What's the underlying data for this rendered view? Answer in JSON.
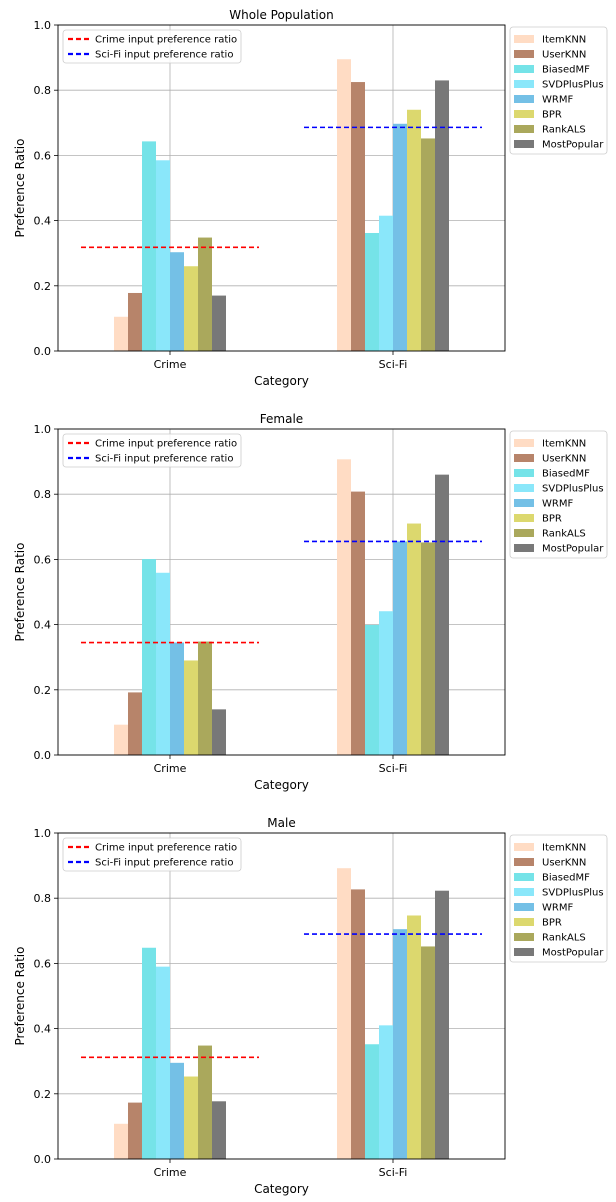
{
  "figure": {
    "description_free": true
  },
  "legend_lines": [
    {
      "label": "Crime input preference ratio",
      "color": "#ff0000"
    },
    {
      "label": "Sci-Fi input preference ratio",
      "color": "#0000ff"
    }
  ],
  "series": [
    {
      "name": "ItemKNN",
      "color": "#ffdcc4"
    },
    {
      "name": "UserKNN",
      "color": "#b7846a"
    },
    {
      "name": "BiasedMF",
      "color": "#75e3e8"
    },
    {
      "name": "SVDPlusPlus",
      "color": "#8ae7fa"
    },
    {
      "name": "WRMF",
      "color": "#74c0e6"
    },
    {
      "name": "BPR",
      "color": "#dcd86e"
    },
    {
      "name": "RankALS",
      "color": "#aaa85c"
    },
    {
      "name": "MostPopular",
      "color": "#787878"
    }
  ],
  "chart_data": [
    {
      "type": "bar",
      "title": "Whole Population",
      "xlabel": "Category",
      "ylabel": "Preference Ratio",
      "categories": [
        "Crime",
        "Sci-Fi"
      ],
      "ylim": [
        0,
        1.0
      ],
      "yticks": [
        "0.0",
        "0.2",
        "0.4",
        "0.6",
        "0.8",
        "1.0"
      ],
      "grid": true,
      "legend": "top-left (lines) and outside right (bars)",
      "values": [
        [
          0.105,
          0.895
        ],
        [
          0.178,
          0.825
        ],
        [
          0.643,
          0.362
        ],
        [
          0.585,
          0.415
        ],
        [
          0.303,
          0.697
        ],
        [
          0.26,
          0.74
        ],
        [
          0.348,
          0.652
        ],
        [
          0.17,
          0.83
        ]
      ],
      "reference_lines": [
        0.318,
        0.686
      ]
    },
    {
      "type": "bar",
      "title": "Female",
      "xlabel": "Category",
      "ylabel": "Preference Ratio",
      "categories": [
        "Crime",
        "Sci-Fi"
      ],
      "ylim": [
        0,
        1.0
      ],
      "yticks": [
        "0.0",
        "0.2",
        "0.4",
        "0.6",
        "0.8",
        "1.0"
      ],
      "grid": true,
      "legend": "top-left (lines) and outside right (bars)",
      "values": [
        [
          0.093,
          0.907
        ],
        [
          0.192,
          0.808
        ],
        [
          0.601,
          0.399
        ],
        [
          0.559,
          0.441
        ],
        [
          0.345,
          0.655
        ],
        [
          0.29,
          0.71
        ],
        [
          0.348,
          0.652
        ],
        [
          0.14,
          0.86
        ]
      ],
      "reference_lines": [
        0.345,
        0.655
      ]
    },
    {
      "type": "bar",
      "title": "Male",
      "xlabel": "Category",
      "ylabel": "Preference Ratio",
      "categories": [
        "Crime",
        "Sci-Fi"
      ],
      "ylim": [
        0,
        1.0
      ],
      "yticks": [
        "0.0",
        "0.2",
        "0.4",
        "0.6",
        "0.8",
        "1.0"
      ],
      "grid": true,
      "legend": "top-left (lines) and outside right (bars)",
      "values": [
        [
          0.108,
          0.892
        ],
        [
          0.173,
          0.827
        ],
        [
          0.648,
          0.352
        ],
        [
          0.59,
          0.41
        ],
        [
          0.295,
          0.705
        ],
        [
          0.253,
          0.747
        ],
        [
          0.348,
          0.652
        ],
        [
          0.177,
          0.823
        ]
      ],
      "reference_lines": [
        0.312,
        0.69
      ]
    }
  ]
}
